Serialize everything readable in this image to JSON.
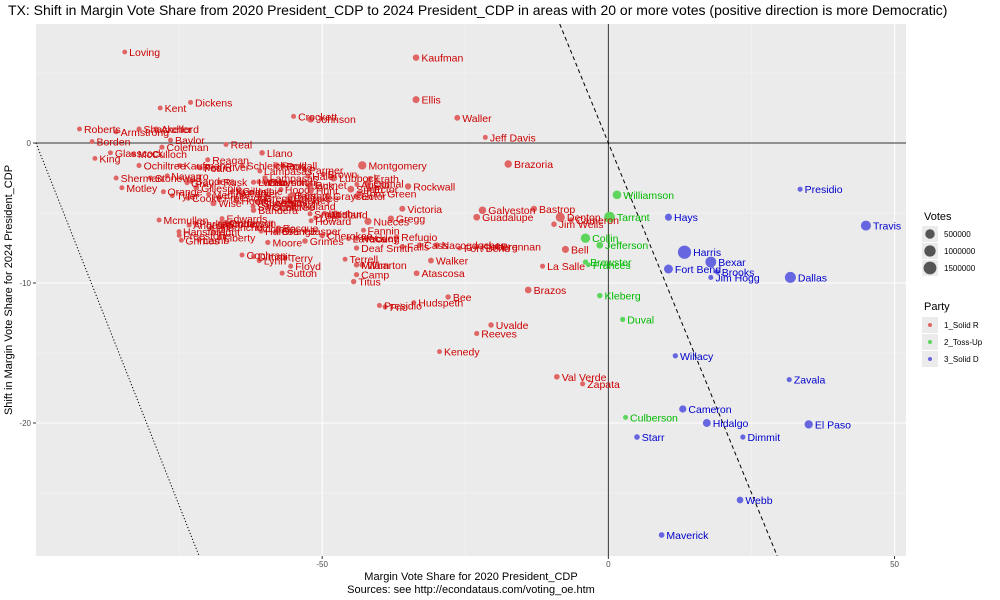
{
  "chart_data": {
    "type": "scatter",
    "title": "TX: Shift in Margin Vote Share from 2020 President_CDP to 2024 President_CDP in areas with 20 or more votes (positive direction is more Democratic)",
    "xlabel": "Margin Vote Share for 2020 President_CDP",
    "ylabel": "Shift in Margin Vote Share for 2024 President_CDP",
    "caption": "Sources: see http://econdataus.com/voting_oe.htm",
    "xlim": [
      -100,
      52
    ],
    "ylim": [
      -29.5,
      8.5
    ],
    "x_ticks": [
      -50,
      0,
      50
    ],
    "y_ticks": [
      0,
      -10,
      -20
    ],
    "x_tick_labels": [
      "-50",
      "0",
      "50"
    ],
    "y_tick_labels": [
      "0",
      "-10",
      "-20"
    ],
    "grid": true,
    "legend_position": "right",
    "legend": {
      "size_title": "Votes",
      "size_entries": [
        "500000",
        "1000000",
        "1500000"
      ],
      "party_title": "Party",
      "party_entries": [
        {
          "label": "1_Solid R",
          "color": "#e06666"
        },
        {
          "label": "2_Toss-Up",
          "color": "#5ed65e"
        },
        {
          "label": "3_Solid D",
          "color": "#6666e0"
        }
      ]
    },
    "colors": {
      "R_point": "#e06666",
      "T_point": "#5ed65e",
      "D_point": "#6666e0",
      "R_text": "#cc0000",
      "T_text": "#00bb00",
      "D_text": "#0000cc",
      "panel": "#ebebeb"
    },
    "points": [
      {
        "name": "Loving",
        "x": -84.5,
        "y": 6.5,
        "party": "R",
        "votes": 60
      },
      {
        "name": "Kaufman",
        "x": -33.6,
        "y": 6.1,
        "party": "R",
        "votes": 70000
      },
      {
        "name": "Ellis",
        "x": -33.6,
        "y": 3.1,
        "party": "R",
        "votes": 110000
      },
      {
        "name": "Waller",
        "x": -26.4,
        "y": 1.8,
        "party": "R",
        "votes": 30000
      },
      {
        "name": "Kent",
        "x": -78.3,
        "y": 2.5,
        "party": "R",
        "votes": 400
      },
      {
        "name": "Dickens",
        "x": -73.0,
        "y": 2.9,
        "party": "R",
        "votes": 1000
      },
      {
        "name": "Crockett",
        "x": -55.0,
        "y": 1.9,
        "party": "R",
        "votes": 1300
      },
      {
        "name": "Johnson",
        "x": -52.0,
        "y": 1.7,
        "party": "R",
        "votes": 90000
      },
      {
        "name": "Roberts",
        "x": -92.4,
        "y": 1.0,
        "party": "R",
        "votes": 500
      },
      {
        "name": "Armstrong",
        "x": -86.0,
        "y": 0.8,
        "party": "R",
        "votes": 1000
      },
      {
        "name": "Shackelford",
        "x": -82.0,
        "y": 1.0,
        "party": "R",
        "votes": 1700
      },
      {
        "name": "Archer",
        "x": -79.0,
        "y": 1.0,
        "party": "R",
        "votes": 4500
      },
      {
        "name": "Jeff Davis",
        "x": -21.5,
        "y": 0.4,
        "party": "R",
        "votes": 1300
      },
      {
        "name": "Borden",
        "x": -90.2,
        "y": 0.1,
        "party": "R",
        "votes": 400
      },
      {
        "name": "Baylor",
        "x": -76.5,
        "y": 0.2,
        "party": "R",
        "votes": 1800
      },
      {
        "name": "Coleman",
        "x": -78.0,
        "y": -0.3,
        "party": "R",
        "votes": 4000
      },
      {
        "name": "Real",
        "x": -66.8,
        "y": -0.1,
        "party": "R",
        "votes": 1800
      },
      {
        "name": "Glasscock",
        "x": -87.0,
        "y": -0.7,
        "party": "R",
        "votes": 700
      },
      {
        "name": "McCulloch",
        "x": -83.0,
        "y": -0.8,
        "party": "R",
        "votes": 3500
      },
      {
        "name": "Llano",
        "x": -60.5,
        "y": -0.7,
        "party": "R",
        "votes": 14000
      },
      {
        "name": "King",
        "x": -89.7,
        "y": -1.1,
        "party": "R",
        "votes": 150
      },
      {
        "name": "Reagan",
        "x": -70.0,
        "y": -1.2,
        "party": "R",
        "votes": 1100
      },
      {
        "name": "Brazoria",
        "x": -17.5,
        "y": -1.5,
        "party": "R",
        "votes": 170000
      },
      {
        "name": "Montgomery",
        "x": -43.0,
        "y": -1.6,
        "party": "R",
        "votes": 300000
      },
      {
        "name": "Randall",
        "x": -58.0,
        "y": -1.6,
        "party": "R",
        "votes": 60000
      },
      {
        "name": "Ochiltree",
        "x": -82.0,
        "y": -1.6,
        "party": "R",
        "votes": 3000
      },
      {
        "name": "Schleicher",
        "x": -64.0,
        "y": -1.6,
        "party": "R",
        "votes": 1200
      },
      {
        "name": "Sherman",
        "x": -86.0,
        "y": -2.5,
        "party": "R",
        "votes": 900
      },
      {
        "name": "Stonewall",
        "x": -80.0,
        "y": -2.5,
        "party": "R",
        "votes": 700
      },
      {
        "name": "Comal",
        "x": -42.0,
        "y": -2.9,
        "party": "R",
        "votes": 90000
      },
      {
        "name": "Lampasas",
        "x": -60.0,
        "y": -2.5,
        "party": "R",
        "votes": 10000
      },
      {
        "name": "Lamb",
        "x": -62.0,
        "y": -2.8,
        "party": "R",
        "votes": 4000
      },
      {
        "name": "Lubbock",
        "x": -48.0,
        "y": -2.5,
        "party": "R",
        "votes": 130000
      },
      {
        "name": "Burnet",
        "x": -52.0,
        "y": -3.0,
        "party": "R",
        "votes": 28000
      },
      {
        "name": "Rockwall",
        "x": -35.0,
        "y": -3.1,
        "party": "R",
        "votes": 60000
      },
      {
        "name": "Motley",
        "x": -85.0,
        "y": -3.2,
        "party": "R",
        "votes": 800
      },
      {
        "name": "Gillespie",
        "x": -72.0,
        "y": -3.2,
        "party": "R",
        "votes": 18000
      },
      {
        "name": "Hunt",
        "x": -52.0,
        "y": -3.4,
        "party": "R",
        "votes": 45000
      },
      {
        "name": "Tom Green",
        "x": -43.5,
        "y": -3.6,
        "party": "R",
        "votes": 45000
      },
      {
        "name": "Grayson",
        "x": -49.0,
        "y": -3.8,
        "party": "R",
        "votes": 60000
      },
      {
        "name": "Smith",
        "x": -45.0,
        "y": -3.3,
        "party": "R",
        "votes": 100000
      },
      {
        "name": "Ector",
        "x": -44.0,
        "y": -3.8,
        "party": "R",
        "votes": 50000
      },
      {
        "name": "Freestone",
        "x": -68.0,
        "y": -3.9,
        "party": "R",
        "votes": 9000
      },
      {
        "name": "Parker",
        "x": -64.0,
        "y": -3.6,
        "party": "R",
        "votes": 80000
      },
      {
        "name": "Wise",
        "x": -69.0,
        "y": -4.3,
        "party": "R",
        "votes": 35000
      },
      {
        "name": "Hood",
        "x": -65.0,
        "y": -4.1,
        "party": "R",
        "votes": 40000
      },
      {
        "name": "Midland",
        "x": -55.0,
        "y": -4.5,
        "party": "R",
        "votes": 60000
      },
      {
        "name": "Bandera",
        "x": -62.0,
        "y": -4.8,
        "party": "R",
        "votes": 13000
      },
      {
        "name": "Victoria",
        "x": -36.0,
        "y": -4.7,
        "party": "R",
        "votes": 35000
      },
      {
        "name": "Galveston",
        "x": -22.0,
        "y": -4.8,
        "party": "R",
        "votes": 170000
      },
      {
        "name": "Bastrop",
        "x": -13.0,
        "y": -4.7,
        "party": "R",
        "votes": 45000
      },
      {
        "name": "Gregg",
        "x": -38.0,
        "y": -5.4,
        "party": "R",
        "votes": 50000
      },
      {
        "name": "Nueces",
        "x": -42.0,
        "y": -5.6,
        "party": "R",
        "votes": 130000
      },
      {
        "name": "Guadalupe",
        "x": -23.0,
        "y": -5.3,
        "party": "R",
        "votes": 90000
      },
      {
        "name": "Denton",
        "x": -8.4,
        "y": -5.3,
        "party": "R",
        "votes": 450000
      },
      {
        "name": "Cameron",
        "x": -6.5,
        "y": -5.5,
        "party": "R",
        "votes": 3000
      },
      {
        "name": "Jim Wells",
        "x": -9.5,
        "y": -5.8,
        "party": "R",
        "votes": 14000
      },
      {
        "name": "Mcmullen",
        "x": -78.5,
        "y": -5.5,
        "party": "R",
        "votes": 500
      },
      {
        "name": "Edwards",
        "x": -67.5,
        "y": -5.4,
        "party": "R",
        "votes": 1000
      },
      {
        "name": "Crane",
        "x": -67.0,
        "y": -5.7,
        "party": "R",
        "votes": 1400
      },
      {
        "name": "Concho",
        "x": -67.5,
        "y": -6.0,
        "party": "R",
        "votes": 1300
      },
      {
        "name": "Orange",
        "x": -58.0,
        "y": -6.3,
        "party": "R",
        "votes": 35000
      },
      {
        "name": "Cherokee",
        "x": -50.0,
        "y": -6.6,
        "party": "R",
        "votes": 20000
      },
      {
        "name": "Grimes",
        "x": -53.0,
        "y": -7.0,
        "party": "R",
        "votes": 12000
      },
      {
        "name": "Moore",
        "x": -59.5,
        "y": -7.1,
        "party": "R",
        "votes": 6000
      },
      {
        "name": "Hockley",
        "x": -44.0,
        "y": -6.8,
        "party": "R",
        "votes": 8000
      },
      {
        "name": "Refugio",
        "x": -37.0,
        "y": -6.7,
        "party": "R",
        "votes": 3000
      },
      {
        "name": "Cass",
        "x": -33.0,
        "y": -7.3,
        "party": "R",
        "votes": 13000
      },
      {
        "name": "Deaf Smith",
        "x": -44.0,
        "y": -7.5,
        "party": "R",
        "votes": 5000
      },
      {
        "name": "Falls",
        "x": -36.0,
        "y": -7.4,
        "party": "R",
        "votes": 7000
      },
      {
        "name": "Nacogdoches",
        "x": -30.0,
        "y": -7.3,
        "party": "R",
        "votes": 26000
      },
      {
        "name": "Fort Bend",
        "x": -26.0,
        "y": -7.5,
        "party": "R",
        "votes": 400
      },
      {
        "name": "Kleberg",
        "x": -23.0,
        "y": -7.4,
        "party": "R",
        "votes": 12000
      },
      {
        "name": "Brennan",
        "x": -19.5,
        "y": -7.4,
        "party": "R",
        "votes": 600
      },
      {
        "name": "Bell",
        "x": -7.5,
        "y": -7.6,
        "party": "R",
        "votes": 130000
      },
      {
        "name": "Cochran",
        "x": -64.0,
        "y": -8.0,
        "party": "R",
        "votes": 1000
      },
      {
        "name": "Dimmit",
        "x": -62.0,
        "y": -8.1,
        "party": "R",
        "votes": 600
      },
      {
        "name": "Terry",
        "x": -56.5,
        "y": -8.2,
        "party": "R",
        "votes": 4000
      },
      {
        "name": "Lynn",
        "x": -61.0,
        "y": -8.4,
        "party": "R",
        "votes": 2500
      },
      {
        "name": "Floyd",
        "x": -55.5,
        "y": -8.8,
        "party": "R",
        "votes": 2200
      },
      {
        "name": "Terrell",
        "x": -46.0,
        "y": -8.3,
        "party": "R",
        "votes": 500
      },
      {
        "name": "Walker",
        "x": -31.0,
        "y": -8.4,
        "party": "R",
        "votes": 25000
      },
      {
        "name": "Milam",
        "x": -44.0,
        "y": -8.7,
        "party": "R",
        "votes": 10000
      },
      {
        "name": "Wharton",
        "x": -43.0,
        "y": -8.7,
        "party": "R",
        "votes": 15000
      },
      {
        "name": "La Salle",
        "x": -11.5,
        "y": -8.8,
        "party": "R",
        "votes": 2500
      },
      {
        "name": "Sutton",
        "x": -57.0,
        "y": -9.3,
        "party": "R",
        "votes": 1500
      },
      {
        "name": "Camp",
        "x": -44.0,
        "y": -9.4,
        "party": "R",
        "votes": 5000
      },
      {
        "name": "Atascosa",
        "x": -33.5,
        "y": -9.3,
        "party": "R",
        "votes": 20000
      },
      {
        "name": "Titus",
        "x": -44.5,
        "y": -9.9,
        "party": "R",
        "votes": 9000
      },
      {
        "name": "Brazos",
        "x": -14.0,
        "y": -10.5,
        "party": "R",
        "votes": 90000
      },
      {
        "name": "Bee",
        "x": -28.0,
        "y": -11.0,
        "party": "R",
        "votes": 10000
      },
      {
        "name": "Hudspeth",
        "x": -34.0,
        "y": -11.4,
        "party": "R",
        "votes": 1000
      },
      {
        "name": "Frio",
        "x": -39.0,
        "y": -11.7,
        "party": "R",
        "votes": 5000
      },
      {
        "name": "Presidio_R",
        "x": -40.0,
        "y": -11.6,
        "party": "R",
        "votes": 2500
      },
      {
        "name": "Uvalde",
        "x": -20.5,
        "y": -13.0,
        "party": "R",
        "votes": 11000
      },
      {
        "name": "Reeves",
        "x": -23.0,
        "y": -13.6,
        "party": "R",
        "votes": 3000
      },
      {
        "name": "Kenedy",
        "x": -29.5,
        "y": -14.9,
        "party": "R",
        "votes": 200
      },
      {
        "name": "Val Verde",
        "x": -9.0,
        "y": -16.7,
        "party": "R",
        "votes": 18000
      },
      {
        "name": "Zapata",
        "x": -4.5,
        "y": -17.2,
        "party": "R",
        "votes": 3000
      },
      {
        "name": "Williamson",
        "x": 1.5,
        "y": -3.7,
        "party": "T",
        "votes": 350000
      },
      {
        "name": "Tarrant",
        "x": 0.2,
        "y": -5.3,
        "party": "T",
        "votes": 850000
      },
      {
        "name": "Collin",
        "x": -4.0,
        "y": -6.8,
        "party": "T",
        "votes": 500000
      },
      {
        "name": "Jefferson",
        "x": -1.5,
        "y": -7.3,
        "party": "T",
        "votes": 90000
      },
      {
        "name": "Brewster",
        "x": -4.0,
        "y": -8.5,
        "party": "T",
        "votes": 5000
      },
      {
        "name": "Frances",
        "x": -3.5,
        "y": -8.7,
        "party": "T",
        "votes": 600
      },
      {
        "name": "Kleberg_T",
        "x": -1.5,
        "y": -10.9,
        "party": "T",
        "votes": 12000
      },
      {
        "name": "Duval",
        "x": 2.5,
        "y": -12.6,
        "party": "T",
        "votes": 5000
      },
      {
        "name": "Culberson",
        "x": 3.0,
        "y": -19.6,
        "party": "T",
        "votes": 800
      },
      {
        "name": "Presidio",
        "x": 33.5,
        "y": -3.3,
        "party": "D",
        "votes": 2700
      },
      {
        "name": "Travis",
        "x": 45.0,
        "y": -5.9,
        "party": "D",
        "votes": 650000
      },
      {
        "name": "Hays",
        "x": 10.5,
        "y": -5.3,
        "party": "D",
        "votes": 120000
      },
      {
        "name": "Harris",
        "x": 13.3,
        "y": -7.8,
        "party": "D",
        "votes": 1650000
      },
      {
        "name": "Bexar",
        "x": 17.9,
        "y": -8.5,
        "party": "D",
        "votes": 850000
      },
      {
        "name": "Fort Bend",
        "x": 10.5,
        "y": -9.0,
        "party": "D",
        "votes": 400000
      },
      {
        "name": "Brooks",
        "x": 19.0,
        "y": -9.2,
        "party": "D",
        "votes": 3000
      },
      {
        "name": "Jim Hogg",
        "x": 17.9,
        "y": -9.6,
        "party": "D",
        "votes": 2000
      },
      {
        "name": "Dallas",
        "x": 31.8,
        "y": -9.6,
        "party": "D",
        "votes": 900000
      },
      {
        "name": "Willacy",
        "x": 11.7,
        "y": -15.2,
        "party": "D",
        "votes": 6000
      },
      {
        "name": "Zavala",
        "x": 31.6,
        "y": -16.9,
        "party": "D",
        "votes": 3500
      },
      {
        "name": "Cameron",
        "x": 13.0,
        "y": -19.0,
        "party": "D",
        "votes": 140000
      },
      {
        "name": "Hidalgo",
        "x": 17.2,
        "y": -20.0,
        "party": "D",
        "votes": 230000
      },
      {
        "name": "El Paso",
        "x": 35.0,
        "y": -20.1,
        "party": "D",
        "votes": 280000
      },
      {
        "name": "Starr",
        "x": 5.0,
        "y": -21.0,
        "party": "D",
        "votes": 15000
      },
      {
        "name": "Dimmit",
        "x": 23.5,
        "y": -21.0,
        "party": "D",
        "votes": 3500
      },
      {
        "name": "Webb",
        "x": 23.0,
        "y": -25.5,
        "party": "D",
        "votes": 80000
      },
      {
        "name": "Maverick",
        "x": 9.3,
        "y": -28.0,
        "party": "D",
        "votes": 18000
      }
    ],
    "label_overrides": {
      "Presidio_R": "Presidio",
      "Kleberg_T": "Kleberg"
    },
    "cluster_labels": [
      "Ochiltree",
      "Gray",
      "Sherman",
      "Hansford",
      "Carson",
      "Stonewall",
      "Parmer",
      "Hamilton",
      "Hale",
      "Mason",
      "Foard",
      "Young",
      "Cooke",
      "Erath",
      "Swisher",
      "Jack",
      "Lamb",
      "Wise",
      "Hood",
      "Parker",
      "Gillespie",
      "Freestone",
      "Hunt",
      "Grayson",
      "Kerr",
      "Midland",
      "Bandera",
      "Lampasas",
      "Tyler",
      "Smith",
      "Ector",
      "Nueces",
      "Victoria",
      "Gregg",
      "Rusk",
      "Brown",
      "Henderson",
      "Lavaca",
      "Fannin",
      "Upshur",
      "Polk",
      "Kendall",
      "Medina",
      "Howard",
      "Liberty",
      "Orange",
      "Cherokee",
      "Grimes",
      "Harrison",
      "Hockley",
      "Angelina",
      "Austin",
      "Navarro",
      "Lee",
      "Jasper",
      "Hill",
      "Red River",
      "Kaufman",
      "Bosque"
    ]
  }
}
